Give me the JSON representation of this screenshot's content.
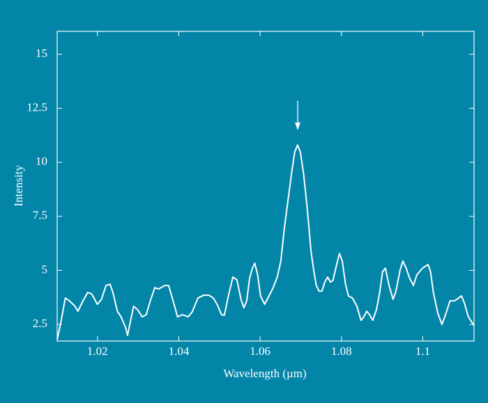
{
  "chart_data": {
    "type": "line",
    "x_label": "Wavelength (µm)",
    "y_label": "Intensity",
    "xlim": [
      1.0101,
      1.1126
    ],
    "ylim": [
      1.73,
      16.06
    ],
    "xticks": [
      1.02,
      1.04,
      1.06,
      1.08,
      1.1
    ],
    "yticks": [
      2.5,
      5,
      7.5,
      10,
      12.5,
      15
    ],
    "grid": false,
    "series": [
      {
        "color": "#ffffff",
        "x": [
          1.0101,
          1.0111,
          1.0121,
          1.0131,
          1.0145,
          1.0152,
          1.0162,
          1.0176,
          1.0186,
          1.02,
          1.021,
          1.0221,
          1.0231,
          1.0238,
          1.0249,
          1.0258,
          1.0269,
          1.0274,
          1.0281,
          1.0289,
          1.0299,
          1.031,
          1.032,
          1.033,
          1.0341,
          1.0351,
          1.0365,
          1.0375,
          1.0385,
          1.0397,
          1.0409,
          1.0423,
          1.0433,
          1.0447,
          1.0461,
          1.0474,
          1.0485,
          1.0495,
          1.0505,
          1.0512,
          1.0522,
          1.0533,
          1.0543,
          1.0553,
          1.056,
          1.0567,
          1.0574,
          1.0581,
          1.0587,
          1.0594,
          1.0601,
          1.0611,
          1.0622,
          1.0632,
          1.0642,
          1.0651,
          1.0659,
          1.0668,
          1.0677,
          1.0685,
          1.0692,
          1.0699,
          1.0707,
          1.0716,
          1.0725,
          1.0731,
          1.0738,
          1.0745,
          1.0752,
          1.0759,
          1.0766,
          1.0773,
          1.0779,
          1.0786,
          1.0795,
          1.0802,
          1.081,
          1.0817,
          1.0827,
          1.0838,
          1.0848,
          1.0855,
          1.0862,
          1.0869,
          1.0877,
          1.0886,
          1.0894,
          1.0901,
          1.0908,
          1.0917,
          1.0927,
          1.0934,
          1.0944,
          1.0951,
          1.0959,
          1.0968,
          1.0977,
          1.0985,
          1.0999,
          1.1013,
          1.1019,
          1.1026,
          1.1037,
          1.1047,
          1.1057,
          1.1067,
          1.1078,
          1.1088,
          1.1095,
          1.1102,
          1.1112,
          1.1126
        ],
        "values": [
          1.79,
          2.69,
          3.72,
          3.59,
          3.34,
          3.11,
          3.5,
          3.98,
          3.91,
          3.43,
          3.66,
          4.3,
          4.36,
          3.98,
          3.11,
          2.85,
          2.37,
          1.99,
          2.63,
          3.34,
          3.18,
          2.85,
          2.95,
          3.59,
          4.2,
          4.14,
          4.3,
          4.3,
          3.66,
          2.85,
          2.95,
          2.85,
          3.08,
          3.72,
          3.85,
          3.85,
          3.72,
          3.4,
          2.95,
          2.92,
          3.82,
          4.69,
          4.56,
          3.66,
          3.27,
          3.59,
          4.62,
          5.1,
          5.33,
          4.78,
          3.82,
          3.43,
          3.82,
          4.2,
          4.69,
          5.43,
          6.87,
          8.16,
          9.45,
          10.47,
          10.8,
          10.47,
          9.45,
          7.84,
          5.91,
          5.1,
          4.3,
          4.04,
          4.04,
          4.46,
          4.69,
          4.46,
          4.53,
          5.1,
          5.78,
          5.43,
          4.36,
          3.82,
          3.72,
          3.34,
          2.69,
          2.85,
          3.11,
          2.95,
          2.69,
          3.18,
          3.98,
          4.94,
          5.1,
          4.3,
          3.66,
          4.04,
          5.01,
          5.43,
          5.1,
          4.62,
          4.3,
          4.78,
          5.1,
          5.27,
          4.94,
          3.98,
          3.01,
          2.5,
          3.01,
          3.59,
          3.59,
          3.72,
          3.82,
          3.5,
          2.85,
          2.44
        ]
      }
    ]
  }
}
